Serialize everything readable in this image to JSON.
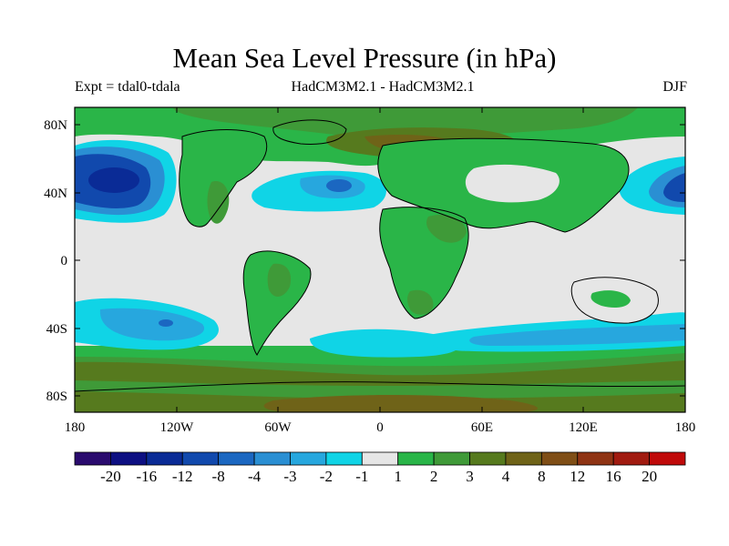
{
  "figure": {
    "title": "Mean Sea Level Pressure (in hPa)",
    "left_label": "Expt = tdal0-tdala",
    "center_label": "HadCM3M2.1 - HadCM3M2.1",
    "right_label": "DJF"
  },
  "axes": {
    "y_ticks": [
      "80N",
      "40N",
      "0",
      "40S",
      "80S"
    ],
    "x_ticks": [
      "180",
      "120W",
      "60W",
      "0",
      "60E",
      "120E",
      "180"
    ]
  },
  "colorbar": {
    "colors": [
      "#2a0b6e",
      "#0d0f82",
      "#0a2b96",
      "#1149ad",
      "#1b67c1",
      "#2a8fd3",
      "#27a7de",
      "#10d4e6",
      "#e6e6e6",
      "#29b548",
      "#3f9a38",
      "#567a1e",
      "#6f6318",
      "#7f4e16",
      "#8f3414",
      "#a11b10",
      "#c00a0a"
    ],
    "labels": [
      "-20",
      "-16",
      "-12",
      "-8",
      "-4",
      "-3",
      "-2",
      "-1",
      "1",
      "2",
      "3",
      "4",
      "8",
      "12",
      "16",
      "20"
    ]
  },
  "map": {
    "ocean_color": "#e6e6e6",
    "land_color": "#2ab548",
    "coastline_color": "#000000"
  }
}
